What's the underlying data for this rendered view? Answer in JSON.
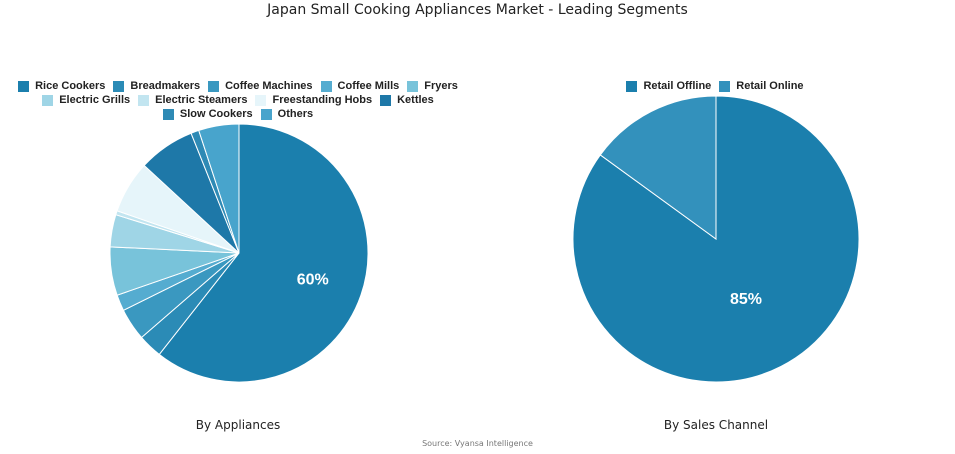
{
  "title": "Japan Small Cooking Appliances Market - Leading Segments",
  "source": "Source: Vyansa Intelligence",
  "chart_data": [
    {
      "type": "pie",
      "caption": "By Appliances",
      "legend_placement": "top",
      "slices": [
        {
          "label": "Rice Cookers",
          "value": 60,
          "color": "#1b7fad",
          "show_label": "60%"
        },
        {
          "label": "Breadmakers",
          "value": 3,
          "color": "#2b8bb6"
        },
        {
          "label": "Coffee Machines",
          "value": 4,
          "color": "#3a98c0"
        },
        {
          "label": "Coffee Mills",
          "value": 2,
          "color": "#55acd0"
        },
        {
          "label": "Fryers",
          "value": 6,
          "color": "#78c3da"
        },
        {
          "label": "Electric Grills",
          "value": 4,
          "color": "#9fd5e6"
        },
        {
          "label": "Electric Steamers",
          "value": 0.5,
          "color": "#c2e5f0"
        },
        {
          "label": "Freestanding Hobs",
          "value": 6.5,
          "color": "#e6f5fa"
        },
        {
          "label": "Kettles",
          "value": 7,
          "color": "#1e78a8"
        },
        {
          "label": "Slow Cookers",
          "value": 1,
          "color": "#2e8ab5"
        },
        {
          "label": "Others",
          "value": 5,
          "color": "#48a4cc"
        }
      ]
    },
    {
      "type": "pie",
      "caption": "By Sales Channel",
      "legend_placement": "top",
      "slices": [
        {
          "label": "Retail Offline",
          "value": 85,
          "color": "#1b7fad",
          "show_label": "85%"
        },
        {
          "label": "Retail Online",
          "value": 15,
          "color": "#3391bc"
        }
      ]
    }
  ]
}
